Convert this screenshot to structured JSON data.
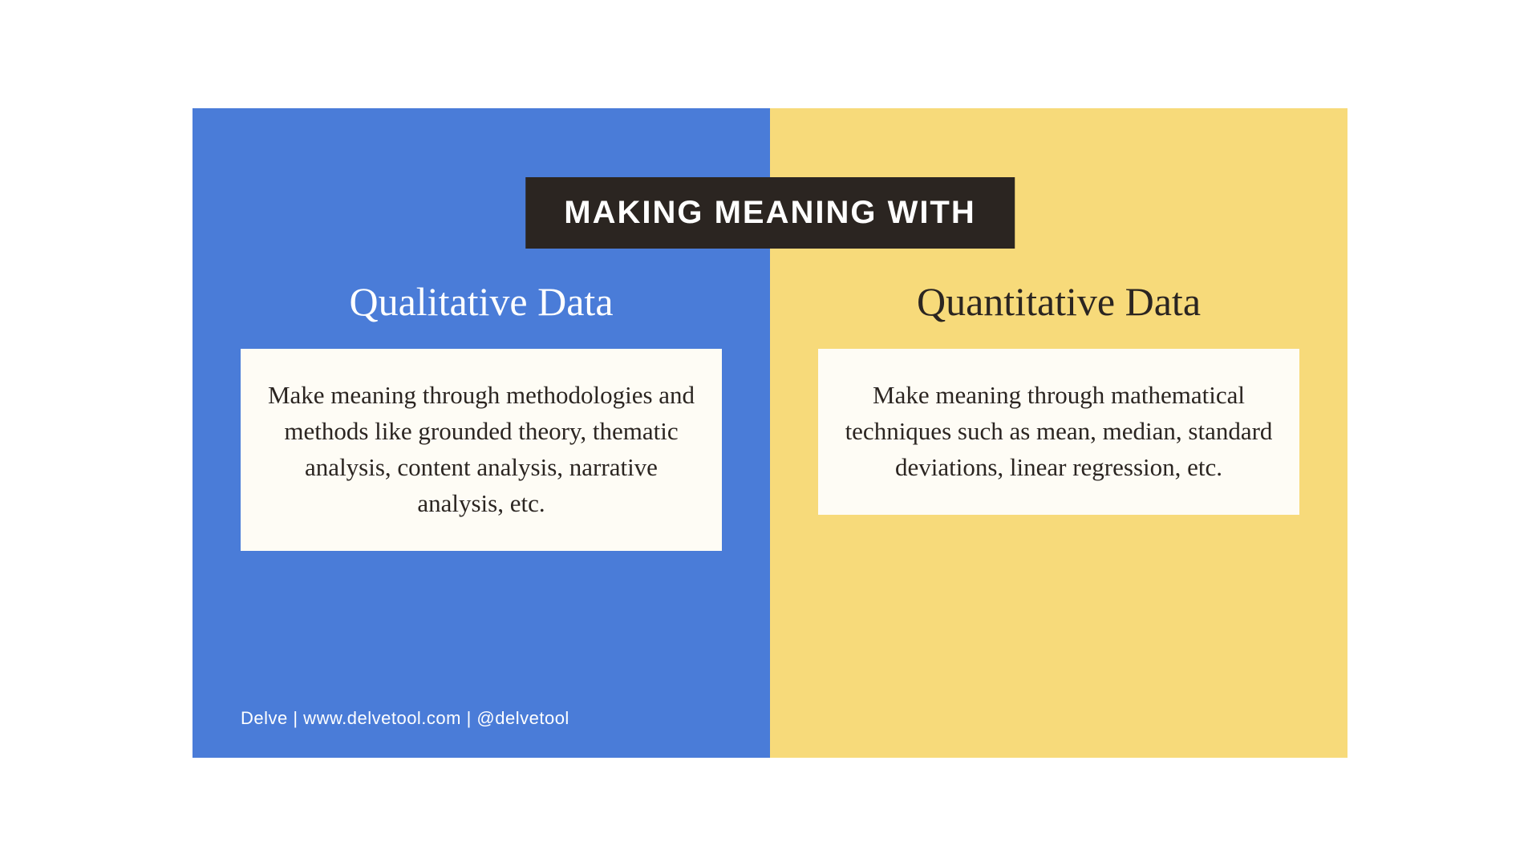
{
  "layout": {
    "slide_width": 1440,
    "slide_height": 810,
    "split": "50/50-vertical"
  },
  "colors": {
    "left_bg": "#4a7cd8",
    "right_bg": "#f7da7a",
    "banner_bg": "#2b2521",
    "banner_text": "#ffffff",
    "left_heading_text": "#ffffff",
    "right_heading_text": "#2b2521",
    "card_bg": "#fefcf5",
    "card_text": "#2b2521",
    "footer_text": "#ffffff"
  },
  "typography": {
    "banner_fontsize": 40,
    "heading_fontsize": 50,
    "card_fontsize": 31,
    "footer_fontsize": 22
  },
  "banner": {
    "text": "MAKING MEANING WITH"
  },
  "left": {
    "heading": "Qualitative Data",
    "card_text": "Make meaning through methodologies and methods like grounded theory, thematic analysis, content analysis, narrative analysis, etc."
  },
  "right": {
    "heading": "Quantitative Data",
    "card_text": "Make meaning through mathematical techniques such as mean, median, standard deviations, linear regression, etc."
  },
  "footer": {
    "text": "Delve  | www.delvetool.com  |  @delvetool"
  }
}
